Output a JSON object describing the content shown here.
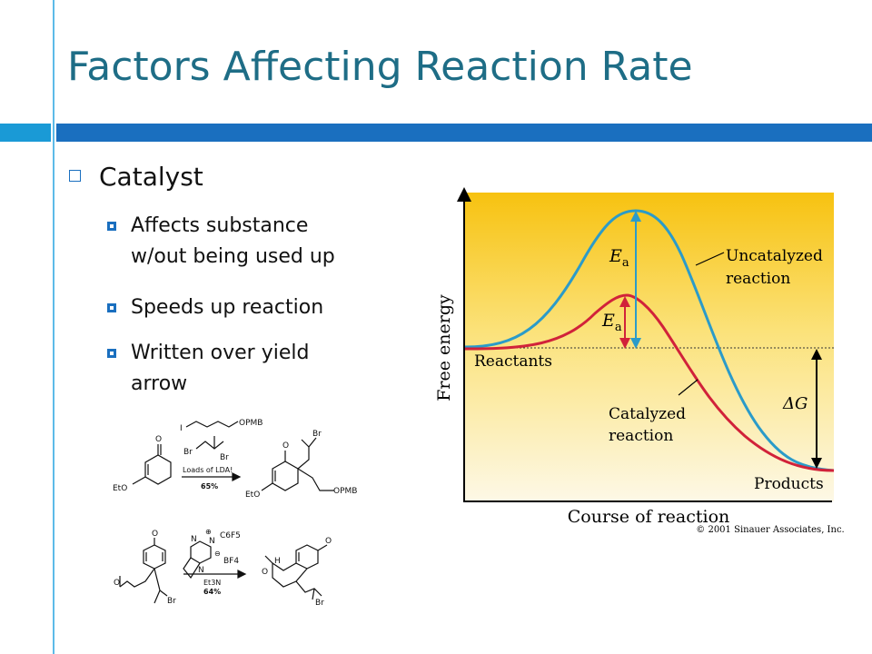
{
  "slide": {
    "title": "Factors Affecting Reaction Rate",
    "bullet": "Catalyst",
    "sub_bullets": [
      {
        "lines": [
          "Affects substance",
          "w/out being used up"
        ]
      },
      {
        "lines": [
          "Speeds up reaction"
        ]
      },
      {
        "lines": [
          "Written over yield",
          "arrow"
        ]
      }
    ]
  },
  "diagram": {
    "y_axis_label": "Free energy",
    "x_axis_label": "Course of reaction",
    "reactants_label": "Reactants",
    "products_label": "Products",
    "uncatalyzed_label": [
      "Uncatalyzed",
      "reaction"
    ],
    "catalyzed_label": [
      "Catalyzed",
      "reaction"
    ],
    "ea_symbol": "E",
    "ea_subscript": "a",
    "delta_g_label": "ΔG",
    "copyright": "© 2001 Sinauer Associates, Inc.",
    "colors": {
      "uncatalyzed": "#2b9bc9",
      "catalyzed": "#d1223a",
      "bg_top": "#f7c210",
      "bg_bottom": "#fdf8e6"
    }
  },
  "scheme1": {
    "reagent_top": "OPMB",
    "reagent_iodo": "I",
    "reagent_br1": "Br",
    "reagent_br2": "Br",
    "arrow_top": "Loads of LDA!",
    "arrow_bottom": "65%",
    "sm_o": "O",
    "sm_eto": "EtO",
    "prod_o": "O",
    "prod_br": "Br",
    "prod_opmb": "OPMB",
    "prod_eto": "EtO"
  },
  "scheme2": {
    "cat_n1": "N",
    "cat_n2": "N",
    "cat_n3": "N",
    "cat_plus": "⊕",
    "cat_c6f5": "C6F5",
    "cat_minus": "⊖",
    "cat_bf4": "BF4",
    "arrow_top": "Et3N",
    "arrow_bottom": "64%",
    "sm_o_top": "O",
    "sm_o_side": "O",
    "sm_br": "Br",
    "prod_h": "H",
    "prod_o1": "O",
    "prod_o2": "O",
    "prod_br": "Br"
  }
}
